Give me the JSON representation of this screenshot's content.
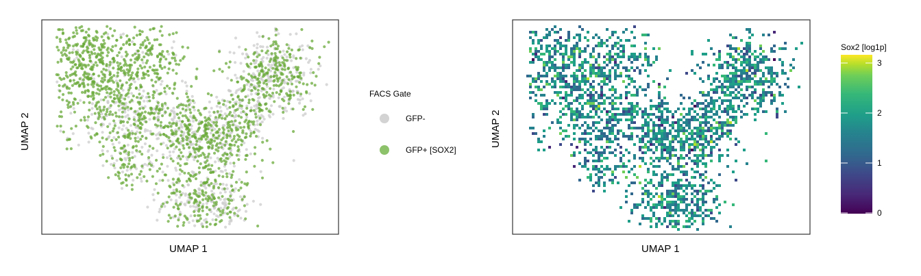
{
  "chart_data": [
    {
      "type": "scatter",
      "xlabel": "UMAP 1",
      "ylabel": "UMAP 2",
      "legend": {
        "title": "FACS Gate",
        "placement": "right",
        "entries": [
          {
            "label": "GFP-",
            "color": "#d3d3d3"
          },
          {
            "label": "GFP+ [SOX2]",
            "color": "#8dc26b"
          }
        ]
      },
      "point_colors": {
        "gfp_neg": "#cccccc",
        "gfp_pos": "#6aaa3a"
      },
      "grid": false
    },
    {
      "type": "heatmap",
      "xlabel": "UMAP 1",
      "ylabel": "UMAP 2",
      "colorbar": {
        "title": "Sox2 [log1p]",
        "colormap": "viridis",
        "range": [
          0,
          3.2
        ],
        "ticks": [
          "0",
          "1",
          "2",
          "3"
        ],
        "tick_values": [
          0,
          1,
          2,
          3
        ]
      },
      "grid": false
    }
  ]
}
